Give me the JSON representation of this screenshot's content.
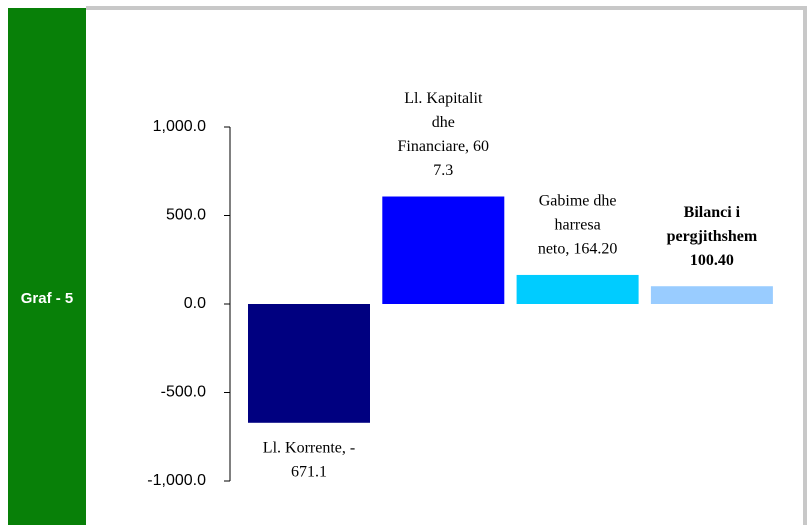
{
  "sidebar_label": "Graf - 5",
  "chart_data": {
    "type": "bar",
    "labels": [
      [
        "Ll. Korrente, -",
        "671.1"
      ],
      [
        "Ll. Kapitalit",
        "dhe",
        "Financiare, 60",
        "7.3"
      ],
      [
        "Gabime dhe",
        "harresa",
        "neto, 164.20"
      ],
      [
        "Bilanci i",
        "pergjithshem",
        "100.40"
      ]
    ],
    "label_bold": [
      false,
      false,
      false,
      true
    ],
    "values": [
      -671.1,
      607.3,
      164.2,
      100.4
    ],
    "colors": [
      "#000080",
      "#0000ff",
      "#00ccff",
      "#99ccff"
    ],
    "ylim": [
      -1000,
      1000
    ],
    "yticks": [
      {
        "value": -1000,
        "label": "-1,000.0"
      },
      {
        "value": -500,
        "label": "-500.0"
      },
      {
        "value": 0,
        "label": "0.0"
      },
      {
        "value": 500,
        "label": "500.0"
      },
      {
        "value": 1000,
        "label": "1,000.0"
      }
    ]
  }
}
